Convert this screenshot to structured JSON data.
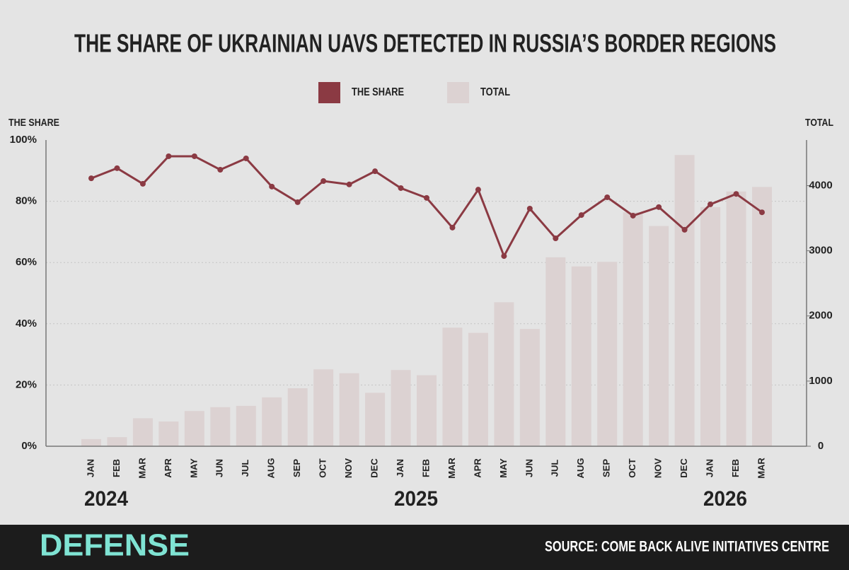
{
  "chart_data": {
    "type": "combo",
    "title": "THE SHARE OF UKRAINIAN UAVS DETECTED IN RUSSIA’S BORDER REGIONS",
    "y_label": "THE SHARE",
    "y2_label": "TOTAL",
    "categories": [
      "JAN",
      "FEB",
      "MAR",
      "APR",
      "MAY",
      "JUN",
      "JUL",
      "AUG",
      "SEP",
      "OCT",
      "NOV",
      "DEC",
      "JAN",
      "FEB",
      "MAR",
      "APR",
      "MAY",
      "JUN",
      "JUL",
      "AUG",
      "SEP",
      "OCT",
      "NOV",
      "DEC",
      "JAN",
      "FEB",
      "MAR"
    ],
    "years": [
      "2024",
      "2025",
      "2026"
    ],
    "series": [
      {
        "name": "THE SHARE",
        "type": "line",
        "axis": "y",
        "color": "#8b3a43",
        "values": [
          87.5,
          90.8,
          85.7,
          94.7,
          94.7,
          90.3,
          94,
          84.8,
          79.7,
          86.6,
          85.5,
          89.8,
          84.3,
          81.1,
          71.4,
          83.8,
          62.1,
          77.6,
          67.9,
          75.5,
          81.3,
          75.3,
          78.1,
          70.7,
          79,
          82.4,
          76.4
        ]
      },
      {
        "name": "TOTAL",
        "type": "bar",
        "axis": "y2",
        "color": "#dcd2d2",
        "values": [
          110,
          140,
          430,
          380,
          540,
          600,
          620,
          750,
          890,
          1180,
          1120,
          820,
          1170,
          1090,
          1820,
          1740,
          2210,
          1800,
          2900,
          2760,
          2830,
          3590,
          3380,
          4470,
          3670,
          3910,
          3980
        ]
      }
    ],
    "ylim": [
      0,
      100
    ],
    "yticks": [
      {
        "value": 0,
        "label": "0%"
      },
      {
        "value": 20,
        "label": "20%"
      },
      {
        "value": 40,
        "label": "40%"
      },
      {
        "value": 60,
        "label": "60%"
      },
      {
        "value": 80,
        "label": "80%"
      },
      {
        "value": 100,
        "label": "100%"
      }
    ],
    "y2lim": [
      0,
      4700
    ],
    "y2ticks": [
      0,
      1000,
      2000,
      3000,
      4000
    ],
    "grid": true,
    "brand": "DEFENSE",
    "source": "SOURCE: COME BACK ALIVE INITIATIVES CENTRE"
  }
}
